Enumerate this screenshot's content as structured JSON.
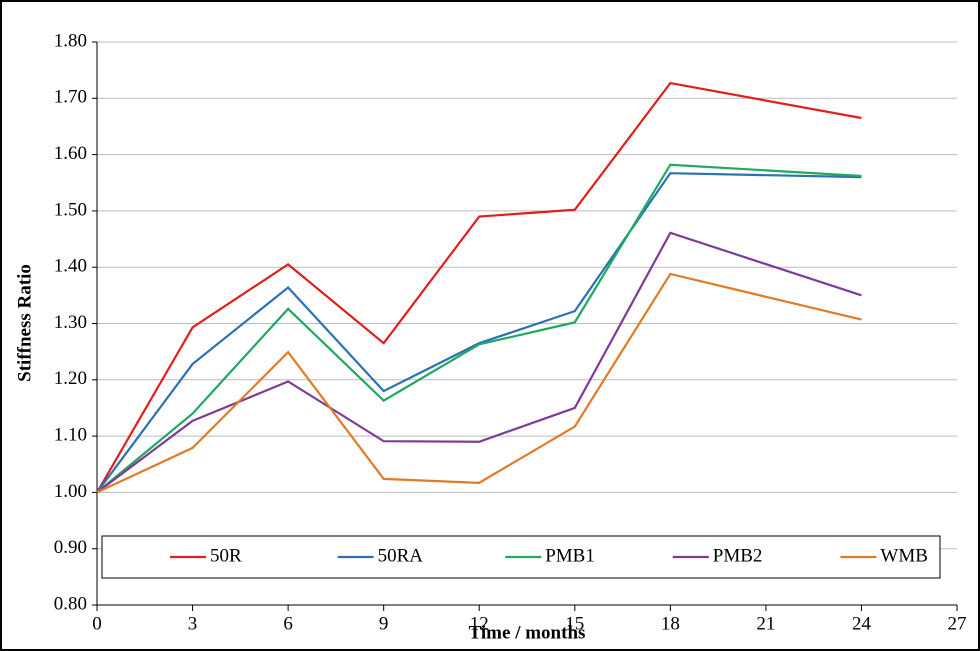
{
  "chart_data": {
    "type": "line",
    "x_label": "Time / months",
    "y_label": "Stiffness Ratio",
    "x": [
      0,
      3,
      6,
      9,
      12,
      15,
      18,
      24
    ],
    "series": [
      {
        "name": "50R",
        "color": "#e0201b",
        "values": [
          1.0,
          1.293,
          1.405,
          1.265,
          1.49,
          1.502,
          1.727,
          1.665
        ]
      },
      {
        "name": "50RA",
        "color": "#2a72b5",
        "values": [
          1.0,
          1.228,
          1.364,
          1.18,
          1.265,
          1.322,
          1.567,
          1.56
        ]
      },
      {
        "name": "PMB1",
        "color": "#1fa860",
        "values": [
          1.0,
          1.14,
          1.326,
          1.163,
          1.263,
          1.302,
          1.582,
          1.562
        ]
      },
      {
        "name": "PMB2",
        "color": "#7d3c98",
        "values": [
          1.0,
          1.127,
          1.197,
          1.091,
          1.09,
          1.15,
          1.461,
          1.35
        ]
      },
      {
        "name": "WMB",
        "color": "#e07b26",
        "values": [
          1.0,
          1.079,
          1.249,
          1.024,
          1.017,
          1.117,
          1.388,
          1.307
        ]
      }
    ],
    "xlim": [
      0,
      27
    ],
    "xticks": [
      0,
      3,
      6,
      9,
      12,
      15,
      18,
      21,
      24,
      27
    ],
    "ylim": [
      0.8,
      1.8
    ],
    "yticks": [
      {
        "value": 0.8,
        "label": "0.80"
      },
      {
        "value": 0.9,
        "label": "0.90"
      },
      {
        "value": 1.0,
        "label": "1.00"
      },
      {
        "value": 1.1,
        "label": "1.10"
      },
      {
        "value": 1.2,
        "label": "1.20"
      },
      {
        "value": 1.3,
        "label": "1.30"
      },
      {
        "value": 1.4,
        "label": "1.40"
      },
      {
        "value": 1.5,
        "label": "1.50"
      },
      {
        "value": 1.6,
        "label": "1.60"
      },
      {
        "value": 1.7,
        "label": "1.70"
      },
      {
        "value": 1.8,
        "label": "1.80"
      }
    ],
    "grid": true,
    "legend": "bottom"
  }
}
